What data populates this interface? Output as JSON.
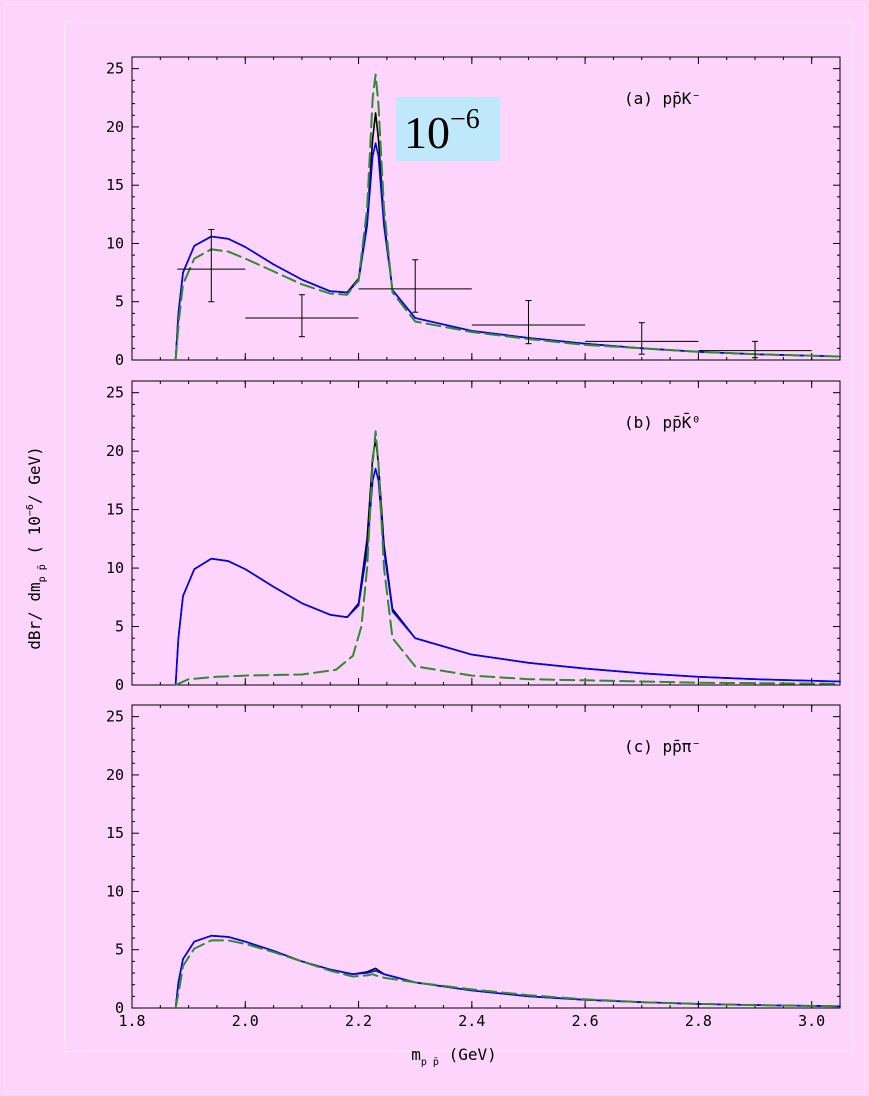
{
  "figure": {
    "ylabel_main": "dBr/ dm",
    "ylabel_sub": "p p̄",
    "ylabel_rest": " ( 10",
    "ylabel_exp": "−6",
    "ylabel_end": "/ GeV)",
    "xlabel_main": "m",
    "xlabel_sub": "p p̄",
    "xlabel_rest": "  (GeV)",
    "scale_badge": {
      "base": "10",
      "exp": "−6",
      "bg": "#bfe8fb"
    }
  },
  "chart_data": [
    {
      "type": "line",
      "panel_label": "(a)",
      "process": "pp̄K⁻",
      "xlim": [
        1.8,
        3.05
      ],
      "ylim": [
        0,
        26
      ],
      "xticks": [
        "1.8",
        "2.0",
        "2.2",
        "2.4",
        "2.6",
        "2.8",
        "3.0"
      ],
      "yticks": [
        "0",
        "5",
        "10",
        "15",
        "20",
        "25"
      ],
      "series": [
        {
          "style": "solid",
          "color": "#000000",
          "points": [
            [
              1.877,
              0
            ],
            [
              1.882,
              4
            ],
            [
              1.89,
              7.5
            ],
            [
              1.91,
              9.8
            ],
            [
              1.94,
              10.6
            ],
            [
              1.97,
              10.4
            ],
            [
              2.0,
              9.7
            ],
            [
              2.05,
              8.2
            ],
            [
              2.1,
              6.9
            ],
            [
              2.15,
              5.9
            ],
            [
              2.18,
              5.8
            ],
            [
              2.2,
              7.0
            ],
            [
              2.215,
              12
            ],
            [
              2.225,
              19
            ],
            [
              2.23,
              21.2
            ],
            [
              2.235,
              19
            ],
            [
              2.245,
              12
            ],
            [
              2.26,
              6
            ],
            [
              2.3,
              3.6
            ],
            [
              2.4,
              2.5
            ],
            [
              2.5,
              1.9
            ],
            [
              2.6,
              1.4
            ],
            [
              2.7,
              1.0
            ],
            [
              2.8,
              0.7
            ],
            [
              2.9,
              0.5
            ],
            [
              3.05,
              0.3
            ]
          ]
        },
        {
          "style": "solid",
          "color": "#0000ff",
          "points": [
            [
              1.877,
              0
            ],
            [
              1.882,
              4
            ],
            [
              1.89,
              7.5
            ],
            [
              1.91,
              9.8
            ],
            [
              1.94,
              10.6
            ],
            [
              1.97,
              10.4
            ],
            [
              2.0,
              9.7
            ],
            [
              2.05,
              8.2
            ],
            [
              2.1,
              6.9
            ],
            [
              2.15,
              5.9
            ],
            [
              2.18,
              5.8
            ],
            [
              2.2,
              6.8
            ],
            [
              2.215,
              11.5
            ],
            [
              2.225,
              17.5
            ],
            [
              2.23,
              18.6
            ],
            [
              2.235,
              17.5
            ],
            [
              2.245,
              11.5
            ],
            [
              2.26,
              6
            ],
            [
              2.3,
              3.6
            ],
            [
              2.4,
              2.5
            ],
            [
              2.5,
              1.9
            ],
            [
              2.6,
              1.4
            ],
            [
              2.7,
              1.0
            ],
            [
              2.8,
              0.7
            ],
            [
              2.9,
              0.5
            ],
            [
              3.05,
              0.3
            ]
          ]
        },
        {
          "style": "dashed",
          "color": "#2e8b2e",
          "points": [
            [
              1.877,
              0
            ],
            [
              1.883,
              3.5
            ],
            [
              1.89,
              6.5
            ],
            [
              1.91,
              8.7
            ],
            [
              1.94,
              9.5
            ],
            [
              1.97,
              9.3
            ],
            [
              2.0,
              8.7
            ],
            [
              2.05,
              7.6
            ],
            [
              2.1,
              6.5
            ],
            [
              2.15,
              5.7
            ],
            [
              2.18,
              5.6
            ],
            [
              2.2,
              6.9
            ],
            [
              2.215,
              13
            ],
            [
              2.225,
              22.5
            ],
            [
              2.23,
              24.5
            ],
            [
              2.235,
              22
            ],
            [
              2.245,
              13
            ],
            [
              2.26,
              5.8
            ],
            [
              2.3,
              3.3
            ],
            [
              2.4,
              2.4
            ],
            [
              2.5,
              1.8
            ],
            [
              2.6,
              1.3
            ],
            [
              2.7,
              1.0
            ],
            [
              2.8,
              0.7
            ],
            [
              2.9,
              0.5
            ],
            [
              3.05,
              0.3
            ]
          ]
        }
      ],
      "data_points": [
        {
          "x": 1.94,
          "y": 7.8,
          "xerr": 0.06,
          "yerr_lo": 2.8,
          "yerr_hi": 3.4
        },
        {
          "x": 2.1,
          "y": 3.6,
          "xerr": 0.1,
          "yerr_lo": 1.6,
          "yerr_hi": 2.0
        },
        {
          "x": 2.3,
          "y": 6.1,
          "xerr": 0.1,
          "yerr_lo": 2.0,
          "yerr_hi": 2.5
        },
        {
          "x": 2.5,
          "y": 3.0,
          "xerr": 0.1,
          "yerr_lo": 1.6,
          "yerr_hi": 2.1
        },
        {
          "x": 2.7,
          "y": 1.6,
          "xerr": 0.1,
          "yerr_lo": 1.1,
          "yerr_hi": 1.6
        },
        {
          "x": 2.9,
          "y": 0.8,
          "xerr": 0.1,
          "yerr_lo": 0.6,
          "yerr_hi": 0.8
        }
      ]
    },
    {
      "type": "line",
      "panel_label": "(b)",
      "process": "pp̄K̄⁰",
      "xlim": [
        1.8,
        3.05
      ],
      "ylim": [
        0,
        26
      ],
      "xticks": [
        "1.8",
        "2.0",
        "2.2",
        "2.4",
        "2.6",
        "2.8",
        "3.0"
      ],
      "yticks": [
        "0",
        "5",
        "10",
        "15",
        "20",
        "25"
      ],
      "series": [
        {
          "style": "solid",
          "color": "#000000",
          "points": [
            [
              1.877,
              0
            ],
            [
              1.882,
              4
            ],
            [
              1.89,
              7.6
            ],
            [
              1.91,
              9.9
            ],
            [
              1.94,
              10.8
            ],
            [
              1.97,
              10.6
            ],
            [
              2.0,
              9.9
            ],
            [
              2.05,
              8.4
            ],
            [
              2.1,
              7.0
            ],
            [
              2.15,
              6.0
            ],
            [
              2.18,
              5.8
            ],
            [
              2.2,
              7.0
            ],
            [
              2.215,
              12.5
            ],
            [
              2.225,
              19.5
            ],
            [
              2.23,
              21.0
            ],
            [
              2.235,
              19
            ],
            [
              2.245,
              12
            ],
            [
              2.26,
              6.5
            ],
            [
              2.3,
              4.0
            ],
            [
              2.4,
              2.6
            ],
            [
              2.5,
              1.9
            ],
            [
              2.6,
              1.4
            ],
            [
              2.7,
              1.0
            ],
            [
              2.8,
              0.7
            ],
            [
              2.9,
              0.5
            ],
            [
              3.05,
              0.3
            ]
          ]
        },
        {
          "style": "solid",
          "color": "#0000ff",
          "points": [
            [
              1.877,
              0
            ],
            [
              1.882,
              4
            ],
            [
              1.89,
              7.6
            ],
            [
              1.91,
              9.9
            ],
            [
              1.94,
              10.8
            ],
            [
              1.97,
              10.6
            ],
            [
              2.0,
              9.9
            ],
            [
              2.05,
              8.4
            ],
            [
              2.1,
              7.0
            ],
            [
              2.15,
              6.0
            ],
            [
              2.18,
              5.8
            ],
            [
              2.2,
              6.8
            ],
            [
              2.215,
              11.5
            ],
            [
              2.225,
              17.5
            ],
            [
              2.23,
              18.5
            ],
            [
              2.235,
              17.5
            ],
            [
              2.245,
              11.5
            ],
            [
              2.26,
              6.3
            ],
            [
              2.3,
              4.0
            ],
            [
              2.4,
              2.6
            ],
            [
              2.5,
              1.9
            ],
            [
              2.6,
              1.4
            ],
            [
              2.7,
              1.0
            ],
            [
              2.8,
              0.7
            ],
            [
              2.9,
              0.5
            ],
            [
              3.05,
              0.3
            ]
          ]
        },
        {
          "style": "dashed",
          "color": "#2e8b2e",
          "points": [
            [
              1.877,
              0
            ],
            [
              1.9,
              0.5
            ],
            [
              1.95,
              0.7
            ],
            [
              2.0,
              0.8
            ],
            [
              2.1,
              0.9
            ],
            [
              2.16,
              1.3
            ],
            [
              2.19,
              2.5
            ],
            [
              2.205,
              5
            ],
            [
              2.215,
              10
            ],
            [
              2.225,
              19
            ],
            [
              2.23,
              21.7
            ],
            [
              2.235,
              19
            ],
            [
              2.245,
              10
            ],
            [
              2.26,
              4
            ],
            [
              2.3,
              1.6
            ],
            [
              2.4,
              0.8
            ],
            [
              2.5,
              0.5
            ],
            [
              2.6,
              0.4
            ],
            [
              2.7,
              0.3
            ],
            [
              2.8,
              0.2
            ],
            [
              3.05,
              0.1
            ]
          ]
        }
      ]
    },
    {
      "type": "line",
      "panel_label": "(c)",
      "process": "pp̄π⁻",
      "xlim": [
        1.8,
        3.05
      ],
      "ylim": [
        0,
        26
      ],
      "xticks": [
        "1.8",
        "2.0",
        "2.2",
        "2.4",
        "2.6",
        "2.8",
        "3.0"
      ],
      "yticks": [
        "0",
        "5",
        "10",
        "15",
        "20",
        "25"
      ],
      "series": [
        {
          "style": "solid",
          "color": "#000000",
          "points": [
            [
              1.877,
              0
            ],
            [
              1.882,
              2.2
            ],
            [
              1.89,
              4.2
            ],
            [
              1.91,
              5.7
            ],
            [
              1.94,
              6.2
            ],
            [
              1.97,
              6.1
            ],
            [
              2.0,
              5.7
            ],
            [
              2.05,
              4.9
            ],
            [
              2.1,
              4.0
            ],
            [
              2.15,
              3.3
            ],
            [
              2.19,
              2.9
            ],
            [
              2.215,
              3.1
            ],
            [
              2.23,
              3.4
            ],
            [
              2.245,
              2.9
            ],
            [
              2.3,
              2.2
            ],
            [
              2.4,
              1.5
            ],
            [
              2.5,
              1.0
            ],
            [
              2.6,
              0.7
            ],
            [
              2.7,
              0.5
            ],
            [
              2.8,
              0.35
            ],
            [
              2.9,
              0.25
            ],
            [
              3.05,
              0.15
            ]
          ]
        },
        {
          "style": "solid",
          "color": "#0000ff",
          "points": [
            [
              1.877,
              0
            ],
            [
              1.882,
              2.2
            ],
            [
              1.89,
              4.2
            ],
            [
              1.91,
              5.7
            ],
            [
              1.94,
              6.2
            ],
            [
              1.97,
              6.1
            ],
            [
              2.0,
              5.7
            ],
            [
              2.05,
              4.9
            ],
            [
              2.1,
              4.0
            ],
            [
              2.15,
              3.3
            ],
            [
              2.19,
              2.9
            ],
            [
              2.215,
              3.0
            ],
            [
              2.23,
              3.2
            ],
            [
              2.245,
              2.9
            ],
            [
              2.3,
              2.2
            ],
            [
              2.4,
              1.5
            ],
            [
              2.5,
              1.0
            ],
            [
              2.6,
              0.7
            ],
            [
              2.7,
              0.5
            ],
            [
              2.8,
              0.35
            ],
            [
              2.9,
              0.25
            ],
            [
              3.05,
              0.15
            ]
          ]
        },
        {
          "style": "dashed",
          "color": "#2e8b2e",
          "points": [
            [
              1.877,
              0
            ],
            [
              1.884,
              1.8
            ],
            [
              1.89,
              3.6
            ],
            [
              1.91,
              5.1
            ],
            [
              1.94,
              5.8
            ],
            [
              1.97,
              5.8
            ],
            [
              2.0,
              5.5
            ],
            [
              2.05,
              4.8
            ],
            [
              2.1,
              4.0
            ],
            [
              2.15,
              3.2
            ],
            [
              2.19,
              2.7
            ],
            [
              2.215,
              2.8
            ],
            [
              2.225,
              2.9
            ],
            [
              2.23,
              2.8
            ],
            [
              2.245,
              2.6
            ],
            [
              2.3,
              2.2
            ],
            [
              2.4,
              1.6
            ],
            [
              2.5,
              1.1
            ],
            [
              2.6,
              0.75
            ],
            [
              2.7,
              0.5
            ],
            [
              2.8,
              0.35
            ],
            [
              2.9,
              0.25
            ],
            [
              3.05,
              0.15
            ]
          ]
        }
      ]
    }
  ]
}
